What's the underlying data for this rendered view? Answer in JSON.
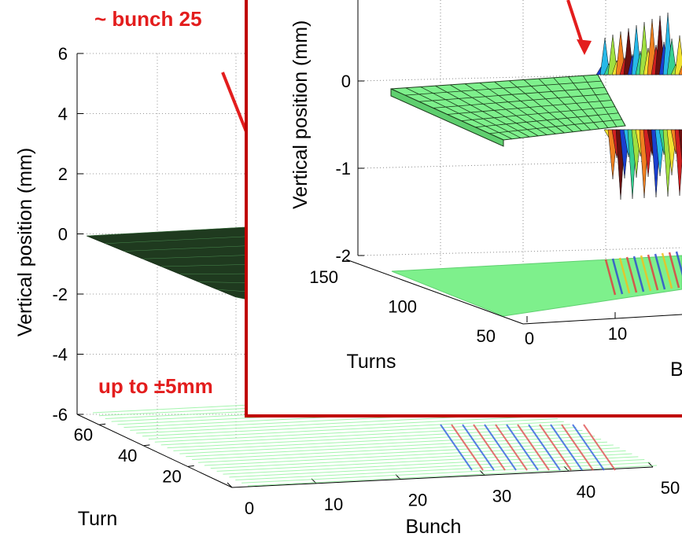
{
  "chart_data": [
    {
      "type": "surface",
      "ylabel": "Vertical position (mm)",
      "xlabel": "Bunch",
      "turn_label": "Turn",
      "z_ticks": [
        "6",
        "4",
        "2",
        "0",
        "-2",
        "-4",
        "-6"
      ],
      "zlim": [
        -6,
        6
      ],
      "bunch_ticks": [
        "0",
        "10",
        "20",
        "30",
        "40",
        "50"
      ],
      "bunch_lim": [
        0,
        50
      ],
      "turn_ticks": [
        "60",
        "40",
        "20"
      ],
      "turn_lim": [
        0,
        70
      ],
      "surface_level": 0,
      "grid": true
    },
    {
      "type": "surface",
      "role": "inset",
      "ylabel": "Vertical position (mm)",
      "turn_label": "Turns",
      "z_ticks": [
        "0",
        "-1",
        "-2"
      ],
      "turn_ticks": [
        "150",
        "100",
        "50"
      ],
      "bunch_ticks": [
        "0",
        "10"
      ],
      "turn_lim": [
        50,
        150
      ],
      "grid": true,
      "colors": {
        "flat": "#7ef08c",
        "frame": "#c00000"
      }
    }
  ],
  "annotations": {
    "bunch": "~ bunch 25",
    "amplitude": "up to ±5mm",
    "inset_xlabel_fragment": "B"
  },
  "colors": {
    "annotation": "#e31d1d",
    "frame": "#c00000",
    "surface": "#7ef08c"
  }
}
